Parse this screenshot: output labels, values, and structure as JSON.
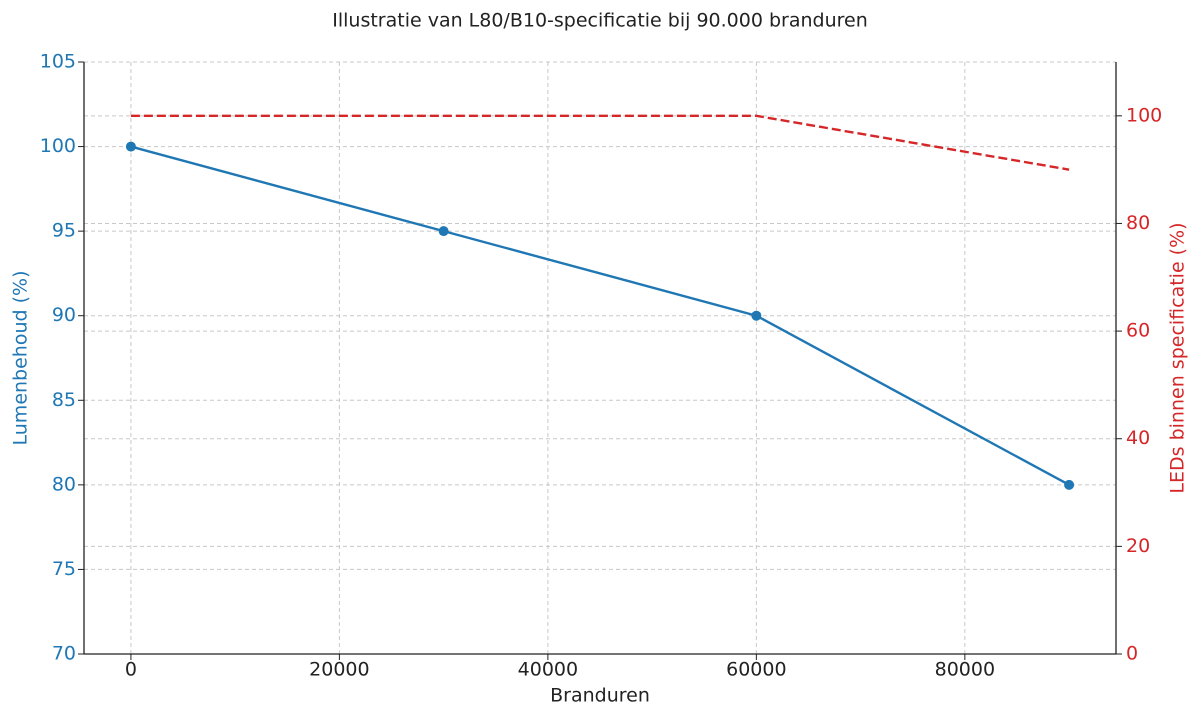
{
  "chart_data": {
    "type": "line",
    "title": "Illustratie van L80/B10-specificatie bij 90.000 branduren",
    "x_label": "Branduren",
    "y_label": "Lumenbehoud (%)",
    "y2_label": "LEDs binnen specificatie (%)",
    "x": [
      0,
      30000,
      60000,
      90000
    ],
    "series": [
      {
        "name": "Lumenbehoud (%)",
        "color": "#1f77b4",
        "linestyle": "solid",
        "marker": "o",
        "values": [
          100,
          95,
          90,
          80
        ]
      },
      {
        "name": "LEDs binnen specificatie (%)",
        "color": "#d62728",
        "linestyle": "dashed",
        "axis": "y2",
        "values": [
          100,
          100,
          100,
          90
        ]
      }
    ],
    "xlim": [
      -4500,
      94500
    ],
    "xticks": [
      0,
      20000,
      40000,
      60000,
      80000
    ],
    "ylim": [
      70,
      105
    ],
    "yticks": [
      70,
      75,
      80,
      85,
      90,
      95,
      100,
      105
    ],
    "y2lim": [
      0,
      110
    ],
    "y2ticks": [
      0,
      20,
      40,
      60,
      80,
      100
    ],
    "grid": true
  }
}
